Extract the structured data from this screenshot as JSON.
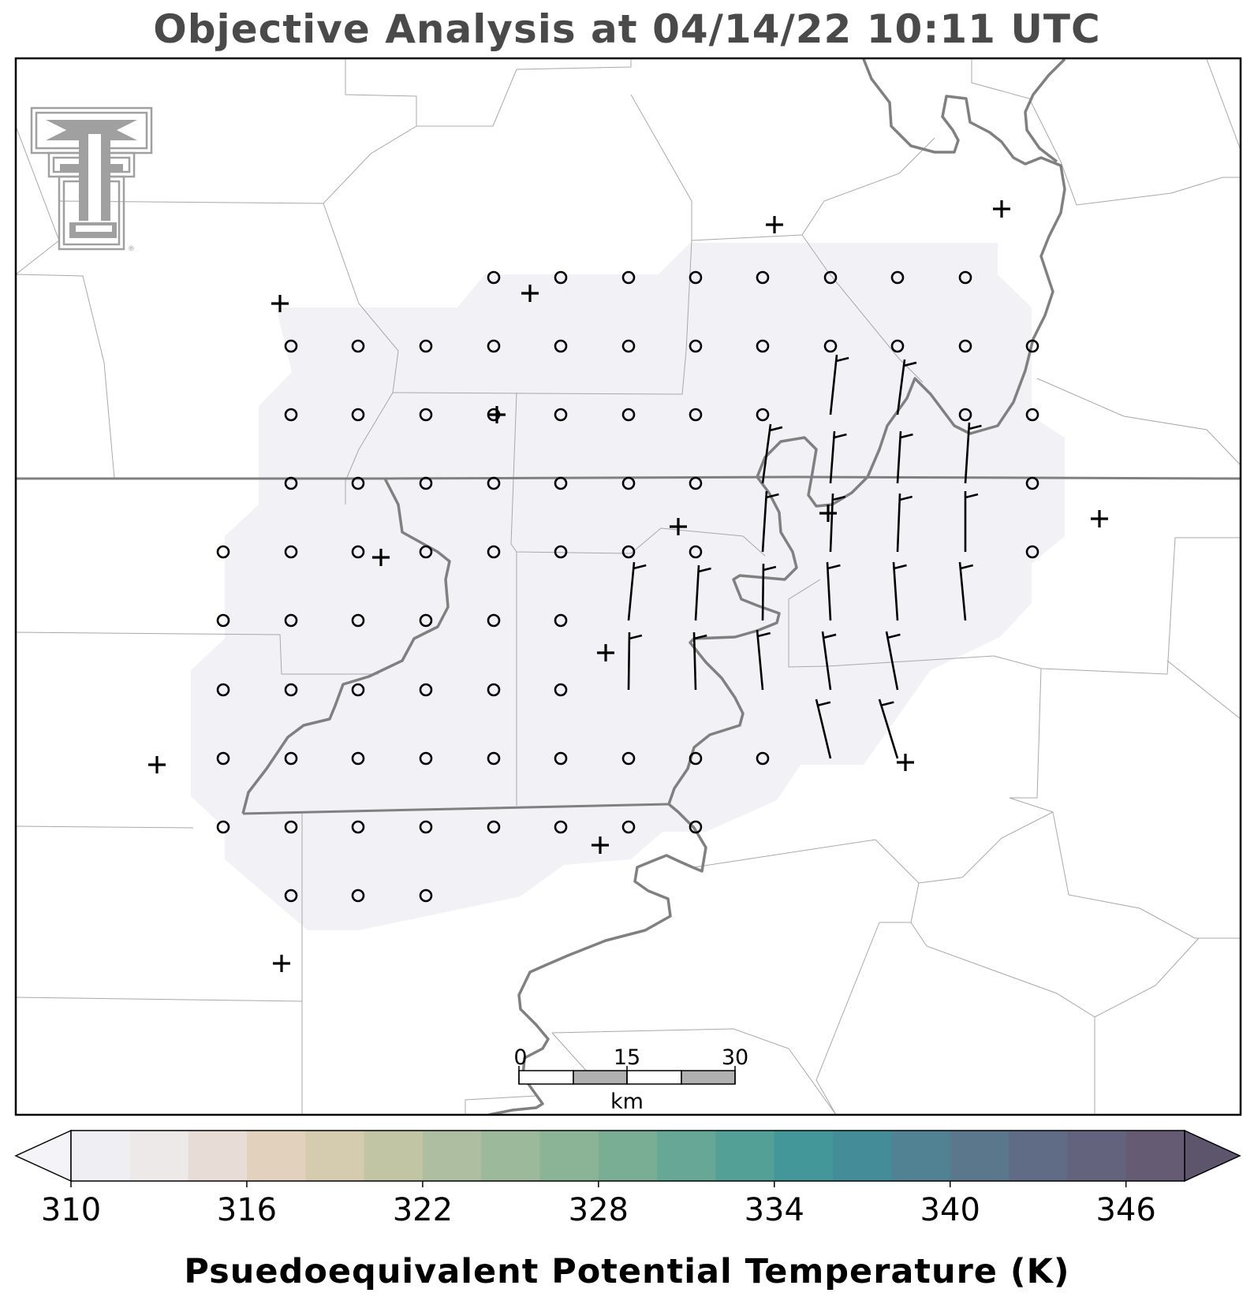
{
  "title": "Objective Analysis at 04/14/22 10:11 UTC",
  "colorbar": {
    "label": "Psuedoequivalent Potential Temperature (K)",
    "tick_labels": [
      "310",
      "316",
      "322",
      "328",
      "334",
      "340",
      "346"
    ],
    "min": 310,
    "max": 350,
    "step": 2,
    "colors": [
      "#efeff3",
      "#ede9e9",
      "#e8ddd6",
      "#e2d1bc",
      "#d5ccaf",
      "#c2c5a3",
      "#aebfa1",
      "#9cb99b",
      "#8bb497",
      "#79ae95",
      "#66a795",
      "#52a096",
      "#449799",
      "#448d98",
      "#508294",
      "#5a778c",
      "#606c85",
      "#64637d",
      "#655c74"
    ],
    "under_color": "#f4f3f7",
    "over_color": "#5d556c"
  },
  "scale_bar": {
    "labels": [
      "0",
      "15",
      "30"
    ],
    "unit": "km"
  },
  "logo": {
    "text": "TT",
    "mark": "®"
  },
  "analysis_field": {
    "value_K": "below 310",
    "color": "#f2f2f6"
  },
  "icons": {
    "station": "plus-marker",
    "calm_grid": "circle-marker",
    "wind": "wind-barb"
  },
  "colors": {
    "state_border": "#808080",
    "river": "#808080",
    "county": "#b0b0b0",
    "frame": "#000000"
  }
}
